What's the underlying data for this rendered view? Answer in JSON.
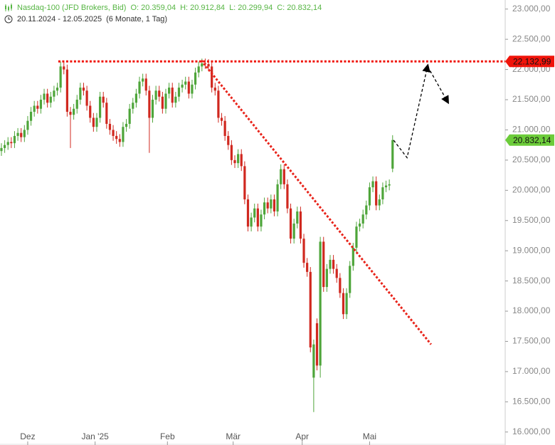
{
  "header": {
    "instrument": "Nasdaq-100 (JFD Brokers, Bid)",
    "ohlc": [
      "O: 20.359,04",
      "H: 20.912,84",
      "L: 20.299,94",
      "C: 20.832,14"
    ],
    "range": "20.11.2024 - 12.05.2025",
    "period": "(6 Monate, 1 Tag)"
  },
  "chart_data": {
    "type": "candlestick",
    "up_color": "#4ea53a",
    "down_color": "#d0281f",
    "xlim": [
      -0.43,
      153.25
    ],
    "ylim": [
      15950,
      23150
    ],
    "xticks": [
      {
        "value": 8,
        "label": "Dez"
      },
      {
        "value": 28.5,
        "label": "Jan '25"
      },
      {
        "value": 50.5,
        "label": "Feb"
      },
      {
        "value": 70.5,
        "label": "Mär"
      },
      {
        "value": 91.5,
        "label": "Apr"
      },
      {
        "value": 112,
        "label": "Mai"
      }
    ],
    "yticks": [
      {
        "value": 16000,
        "label": "16.000,00"
      },
      {
        "value": 16500,
        "label": "16.500,00"
      },
      {
        "value": 17000,
        "label": "17.000,00"
      },
      {
        "value": 17500,
        "label": "17.500,00"
      },
      {
        "value": 18000,
        "label": "18.000,00"
      },
      {
        "value": 18500,
        "label": "18.500,00"
      },
      {
        "value": 19000,
        "label": "19.000,00"
      },
      {
        "value": 19500,
        "label": "19.500,00"
      },
      {
        "value": 20000,
        "label": "20.000,00"
      },
      {
        "value": 20500,
        "label": "20.500,00"
      },
      {
        "value": 21000,
        "label": "21.000,00"
      },
      {
        "value": 21500,
        "label": "21.500,00"
      },
      {
        "value": 22000,
        "label": "22.000,00"
      },
      {
        "value": 22500,
        "label": "22.500,00"
      },
      {
        "value": 23000,
        "label": "23.000,00"
      }
    ],
    "open": [
      20650,
      20700,
      20750,
      20800,
      20780,
      20900,
      20950,
      20880,
      21000,
      21150,
      21300,
      21400,
      21350,
      21500,
      21600,
      21450,
      21550,
      21650,
      21700,
      22050,
      22000,
      21300,
      21250,
      21350,
      21500,
      21700,
      21650,
      21400,
      21200,
      21050,
      21200,
      21550,
      21450,
      21100,
      21000,
      20900,
      20850,
      20800,
      21050,
      21100,
      21350,
      21450,
      21600,
      21800,
      21850,
      21650,
      21200,
      21500,
      21650,
      21550,
      21350,
      21600,
      21700,
      21450,
      21550,
      21700,
      21750,
      21800,
      21600,
      21750,
      21950,
      22050,
      22100,
      22090,
      22050,
      21700,
      21650,
      21200,
      21150,
      20900,
      20750,
      20500,
      20450,
      20600,
      20400,
      19850,
      19400,
      19550,
      19700,
      19400,
      19600,
      19800,
      19700,
      19850,
      19650,
      20100,
      20350,
      20100,
      19700,
      19200,
      19450,
      19650,
      19200,
      18800,
      18650,
      16900,
      17800,
      17100,
      19150,
      18400,
      18700,
      18850,
      18700,
      18550,
      18300,
      17950,
      18300,
      18750,
      19050,
      19400,
      19450,
      19600,
      19750,
      20050,
      20150,
      19750,
      19850,
      20050,
      20080,
      20359.04
    ],
    "high": [
      20780,
      20830,
      20880,
      20880,
      20980,
      21030,
      21030,
      21080,
      21230,
      21380,
      21480,
      21480,
      21580,
      21680,
      21680,
      21630,
      21730,
      21780,
      22130,
      22130,
      22080,
      21380,
      21430,
      21580,
      21780,
      21780,
      21730,
      21480,
      21280,
      21280,
      21630,
      21630,
      21530,
      21180,
      21080,
      20980,
      20930,
      21130,
      21180,
      21430,
      21530,
      21680,
      21880,
      21930,
      21930,
      21730,
      21580,
      21730,
      21730,
      21630,
      21680,
      21780,
      21780,
      21630,
      21780,
      21830,
      21880,
      21880,
      21830,
      22030,
      22130,
      22180,
      22180,
      22170,
      22130,
      21780,
      21730,
      21280,
      21230,
      20980,
      20830,
      20580,
      20680,
      20680,
      20480,
      19930,
      19630,
      19780,
      19780,
      19680,
      19880,
      19880,
      19930,
      19930,
      20180,
      20430,
      20430,
      20180,
      19780,
      19530,
      19730,
      19730,
      19280,
      18880,
      18730,
      17530,
      17880,
      19230,
      19230,
      18780,
      18930,
      18930,
      18780,
      18630,
      18380,
      18380,
      18830,
      19130,
      19480,
      19530,
      19680,
      19830,
      20130,
      20230,
      20230,
      19930,
      20130,
      20160,
      20180,
      20912.84
    ],
    "low": [
      20570,
      20620,
      20670,
      20700,
      20700,
      20820,
      20800,
      20800,
      20920,
      21070,
      21220,
      21270,
      21270,
      21420,
      21370,
      21370,
      21470,
      21570,
      21620,
      21920,
      21220,
      20700,
      21170,
      21270,
      21420,
      21570,
      21320,
      21120,
      20970,
      20970,
      21120,
      21370,
      21020,
      20920,
      20820,
      20770,
      20720,
      20720,
      20970,
      21020,
      21270,
      21370,
      21520,
      21720,
      21570,
      20620,
      21120,
      21420,
      21470,
      21270,
      21270,
      21520,
      21370,
      21370,
      21470,
      21620,
      21670,
      21520,
      21520,
      21670,
      21870,
      21970,
      22010,
      21970,
      21620,
      21570,
      21120,
      21070,
      20820,
      20670,
      20420,
      20370,
      20370,
      20320,
      19770,
      19320,
      19320,
      19470,
      19320,
      19320,
      19520,
      19620,
      19620,
      19570,
      19570,
      20020,
      20020,
      19620,
      19120,
      19120,
      19370,
      19120,
      18720,
      18570,
      17320,
      16330,
      17020,
      16900,
      18320,
      18320,
      18620,
      18620,
      18470,
      18220,
      17870,
      17870,
      18220,
      18670,
      18970,
      19320,
      19370,
      19520,
      19670,
      19970,
      19670,
      19670,
      19770,
      19970,
      20000,
      20299.94
    ],
    "close": [
      20700,
      20750,
      20800,
      20780,
      20900,
      20950,
      20880,
      21000,
      21150,
      21300,
      21400,
      21350,
      21500,
      21600,
      21450,
      21550,
      21650,
      21700,
      22050,
      22000,
      21300,
      21250,
      21350,
      21500,
      21700,
      21650,
      21400,
      21200,
      21050,
      21200,
      21550,
      21450,
      21100,
      21000,
      20900,
      20850,
      20800,
      21050,
      21100,
      21350,
      21450,
      21600,
      21800,
      21850,
      21650,
      21200,
      21500,
      21650,
      21550,
      21350,
      21600,
      21700,
      21450,
      21550,
      21700,
      21750,
      21800,
      21600,
      21750,
      21950,
      22050,
      22100,
      22090,
      22050,
      21700,
      21650,
      21200,
      21150,
      20900,
      20750,
      20500,
      20450,
      20600,
      20400,
      19850,
      19400,
      19550,
      19700,
      19400,
      19600,
      19800,
      19700,
      19850,
      19650,
      20100,
      20350,
      20100,
      19700,
      19200,
      19450,
      19650,
      19200,
      18800,
      18650,
      17400,
      17450,
      17100,
      19150,
      18400,
      18700,
      18850,
      18700,
      18550,
      18300,
      17950,
      18300,
      18750,
      19050,
      19400,
      19450,
      19600,
      19750,
      20050,
      20150,
      19750,
      19850,
      20050,
      20080,
      20100,
      20832.14
    ],
    "price_labels": [
      {
        "value": 22132.99,
        "label": "22.132,99",
        "color": "#f0140a",
        "line_from": 17.3
      },
      {
        "value": 20832.14,
        "label": "20.832,14",
        "color": "#6ccc3a"
      }
    ],
    "annotations": [
      {
        "style": "dotted",
        "color": "#e8231a",
        "points": [
          [
            60.8,
            22150
          ],
          [
            130.7,
            17450
          ]
        ]
      },
      {
        "style": "dashed",
        "color": "#000000",
        "arrow": true,
        "points": [
          [
            119.3,
            20830
          ],
          [
            123.4,
            20540
          ],
          [
            129.7,
            22070
          ]
        ]
      },
      {
        "style": "dashed",
        "color": "#000000",
        "arrow": true,
        "points": [
          [
            130.4,
            21980
          ],
          [
            135.9,
            21450
          ]
        ]
      }
    ]
  }
}
